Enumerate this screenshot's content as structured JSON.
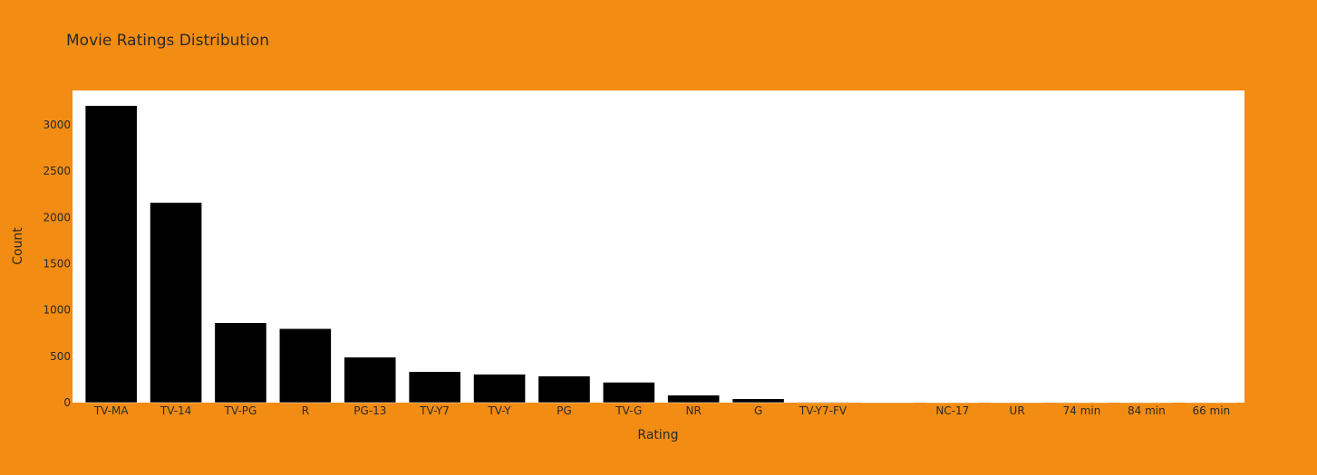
{
  "chart_data": {
    "type": "bar",
    "title": "Movie Ratings Distribution",
    "xlabel": "Rating",
    "ylabel": "Count",
    "categories": [
      "TV-MA",
      "TV-14",
      "TV-PG",
      "R",
      "PG-13",
      "TV-Y7",
      "TV-Y",
      "PG",
      "TV-G",
      "NR",
      "G",
      "TV-Y7-FV",
      "",
      "NC-17",
      "UR",
      "74 min",
      "84 min",
      "66 min"
    ],
    "values": [
      3207,
      2160,
      863,
      799,
      490,
      334,
      307,
      287,
      220,
      80,
      41,
      6,
      4,
      3,
      3,
      1,
      1,
      1
    ],
    "ylim": [
      0,
      3370
    ],
    "yticks": [
      0,
      500,
      1000,
      1500,
      2000,
      2500,
      3000
    ],
    "grid": false,
    "colors": {
      "background": "#f28c13",
      "plot_background": "#ffffff",
      "bar": "#000000"
    }
  }
}
